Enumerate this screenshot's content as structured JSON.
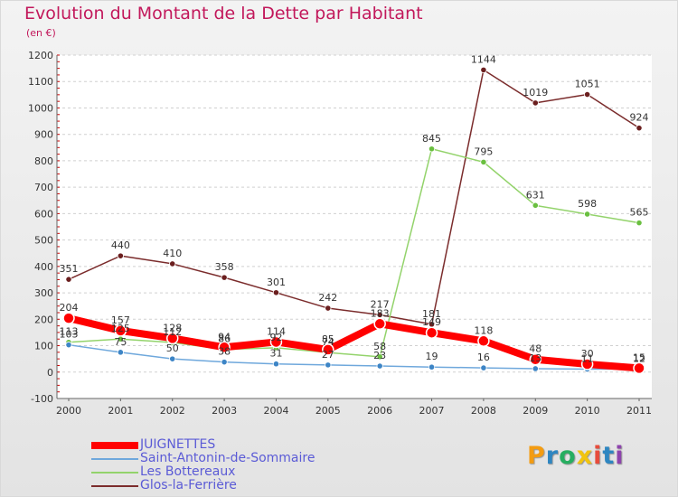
{
  "chart_data": {
    "type": "line",
    "title": "Evolution du Montant de la Dette par Habitant",
    "subtitle": "(en €)",
    "xlabel": "",
    "ylabel": "",
    "ylim": [
      -100,
      1200
    ],
    "yticks": [
      -100,
      0,
      100,
      200,
      300,
      400,
      500,
      600,
      700,
      800,
      900,
      1000,
      1100,
      1200
    ],
    "categories": [
      "2000",
      "2001",
      "2002",
      "2003",
      "2004",
      "2005",
      "2006",
      "2007",
      "2008",
      "2009",
      "2010",
      "2011"
    ],
    "grid": "horizontal dashed",
    "legend": "bottom-left",
    "series": [
      {
        "name": "JUIGNETTES",
        "color": "#ff0000",
        "marker_color": "#ff0000",
        "values": [
          204,
          157,
          128,
          94,
          114,
          85,
          183,
          149,
          118,
          48,
          30,
          15
        ]
      },
      {
        "name": "Saint-Antonin-de-Sommaire",
        "color": "#6fa8dc",
        "marker_color": "#3d85c6",
        "values": [
          103,
          75,
          50,
          38,
          31,
          27,
          23,
          19,
          16,
          13,
          11,
          12
        ]
      },
      {
        "name": "Les Bottereaux",
        "color": "#93d36b",
        "marker_color": "#6abf40",
        "values": [
          113,
          125,
          112,
          86,
          92,
          74,
          58,
          845,
          795,
          631,
          598,
          565
        ]
      },
      {
        "name": "Glos-la-Ferrière",
        "color": "#7b2c2c",
        "marker_color": "#6b1f1f",
        "values": [
          351,
          440,
          410,
          358,
          301,
          242,
          217,
          181,
          1144,
          1019,
          1051,
          924
        ]
      }
    ]
  },
  "logo": {
    "letters": [
      "P",
      "r",
      "o",
      "x",
      "i",
      "t",
      "i"
    ],
    "colors": [
      "#f39c12",
      "#2e86c1",
      "#27ae60",
      "#f1c40f",
      "#e74c3c",
      "#2e86c1",
      "#8e44ad"
    ]
  }
}
